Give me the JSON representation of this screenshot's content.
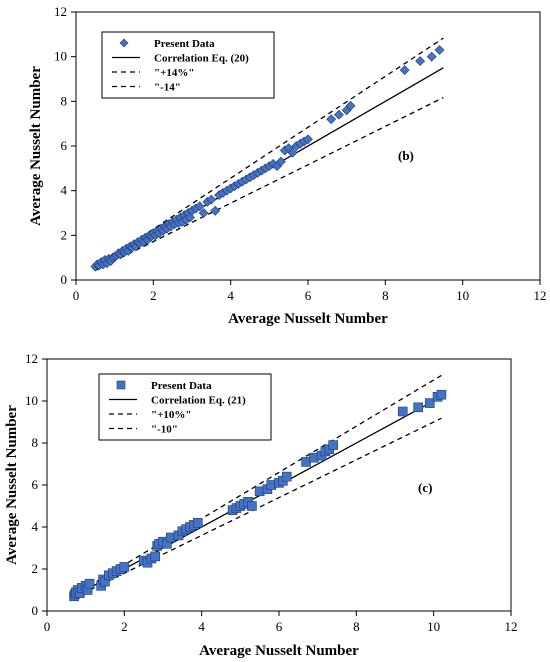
{
  "chart_data": [
    {
      "type": "scatter",
      "panel_label": "(b)",
      "xlabel": "Average Nusselt Number",
      "ylabel": "Average Nusselt Number",
      "xlim": [
        0,
        12
      ],
      "ylim": [
        0,
        12
      ],
      "xticks": [
        0,
        2,
        4,
        6,
        8,
        10,
        12
      ],
      "yticks": [
        0,
        2,
        4,
        6,
        8,
        10,
        12
      ],
      "grid": false,
      "legend_position": "top-left",
      "marker": "diamond",
      "marker_color": "#4472C4",
      "series": [
        {
          "name": "Present Data",
          "kind": "points",
          "x": [
            0.5,
            0.55,
            0.6,
            0.65,
            0.7,
            0.75,
            0.8,
            0.85,
            0.9,
            0.95,
            1.0,
            1.05,
            1.1,
            1.15,
            1.2,
            1.25,
            1.3,
            1.35,
            1.4,
            1.45,
            1.5,
            1.55,
            1.6,
            1.65,
            1.7,
            1.75,
            1.8,
            1.85,
            1.9,
            1.95,
            2.0,
            2.05,
            2.1,
            2.15,
            2.2,
            2.25,
            2.3,
            2.35,
            2.4,
            2.45,
            2.5,
            2.55,
            2.6,
            2.65,
            2.7,
            2.75,
            2.8,
            2.85,
            2.9,
            2.95,
            3.0,
            3.1,
            3.2,
            3.3,
            3.4,
            3.5,
            3.6,
            3.7,
            3.8,
            3.9,
            4.0,
            4.1,
            4.2,
            4.3,
            4.4,
            4.5,
            4.6,
            4.7,
            4.8,
            4.9,
            5.0,
            5.1,
            5.2,
            5.3,
            5.4,
            5.5,
            5.6,
            5.7,
            5.8,
            5.9,
            6.0,
            6.6,
            6.8,
            7.0,
            7.1,
            8.5,
            8.9,
            9.2,
            9.4
          ],
          "y": [
            0.6,
            0.7,
            0.65,
            0.8,
            0.7,
            0.9,
            0.75,
            0.95,
            0.85,
            1.0,
            1.05,
            1.1,
            1.2,
            1.15,
            1.3,
            1.25,
            1.4,
            1.3,
            1.5,
            1.45,
            1.6,
            1.5,
            1.7,
            1.65,
            1.8,
            1.7,
            1.9,
            1.8,
            2.0,
            1.95,
            2.1,
            2.0,
            2.2,
            2.1,
            2.3,
            2.2,
            2.4,
            2.3,
            2.5,
            2.4,
            2.6,
            2.5,
            2.7,
            2.55,
            2.8,
            2.6,
            2.9,
            2.7,
            3.0,
            2.8,
            3.1,
            3.2,
            3.3,
            3.0,
            3.5,
            3.6,
            3.1,
            3.8,
            3.9,
            4.0,
            4.1,
            4.2,
            4.3,
            4.4,
            4.5,
            4.6,
            4.7,
            4.8,
            4.9,
            5.0,
            5.1,
            5.2,
            5.1,
            5.3,
            5.8,
            5.9,
            5.7,
            6.0,
            6.1,
            6.2,
            6.3,
            7.2,
            7.4,
            7.6,
            7.8,
            9.4,
            9.8,
            10.0,
            10.3
          ]
        },
        {
          "name": "Correlation Eq. (20)",
          "kind": "line",
          "style": "solid",
          "x": [
            0.5,
            9.5
          ],
          "y": [
            0.5,
            9.5
          ]
        },
        {
          "name": "\"+14%\"",
          "kind": "line",
          "style": "dashed",
          "x": [
            0.5,
            9.5
          ],
          "y": [
            0.57,
            10.83
          ]
        },
        {
          "name": "\"-14\"",
          "kind": "line",
          "style": "dashed",
          "x": [
            0.5,
            9.5
          ],
          "y": [
            0.43,
            8.17
          ]
        }
      ]
    },
    {
      "type": "scatter",
      "panel_label": "(c)",
      "xlabel": "Average Nusselt Number",
      "ylabel": "Average Nusselt Number",
      "xlim": [
        0,
        12
      ],
      "ylim": [
        0,
        12
      ],
      "xticks": [
        0,
        2,
        4,
        6,
        8,
        10,
        12
      ],
      "yticks": [
        0,
        2,
        4,
        6,
        8,
        10,
        12
      ],
      "grid": false,
      "legend_position": "top-left",
      "marker": "square",
      "marker_color": "#4472C4",
      "series": [
        {
          "name": "Present Data",
          "kind": "points",
          "x": [
            0.7,
            0.72,
            0.75,
            0.8,
            0.85,
            0.9,
            1.0,
            1.05,
            1.1,
            1.4,
            1.45,
            1.5,
            1.6,
            1.7,
            1.8,
            1.9,
            2.0,
            2.5,
            2.6,
            2.7,
            2.8,
            2.85,
            2.9,
            3.0,
            3.1,
            3.2,
            3.4,
            3.5,
            3.6,
            3.7,
            3.8,
            3.9,
            4.8,
            4.9,
            5.0,
            5.1,
            5.2,
            5.3,
            5.5,
            5.7,
            5.8,
            6.0,
            6.1,
            6.2,
            6.7,
            6.9,
            7.1,
            7.2,
            7.3,
            7.4,
            9.2,
            9.6,
            9.9,
            10.1,
            10.2
          ],
          "y": [
            0.7,
            0.8,
            0.9,
            1.0,
            0.85,
            1.1,
            1.2,
            1.0,
            1.3,
            1.2,
            1.5,
            1.4,
            1.7,
            1.8,
            1.9,
            2.0,
            2.1,
            2.4,
            2.3,
            2.5,
            2.6,
            3.1,
            3.2,
            3.3,
            3.2,
            3.5,
            3.6,
            3.8,
            3.9,
            4.0,
            4.1,
            4.2,
            4.8,
            4.9,
            5.0,
            5.1,
            5.2,
            5.0,
            5.7,
            5.8,
            6.0,
            6.1,
            6.2,
            6.4,
            7.1,
            7.3,
            7.4,
            7.6,
            7.7,
            7.9,
            9.5,
            9.7,
            9.9,
            10.2,
            10.3
          ]
        },
        {
          "name": "Correlation Eq. (21)",
          "kind": "line",
          "style": "solid",
          "x": [
            0.7,
            10.2
          ],
          "y": [
            0.7,
            10.2
          ]
        },
        {
          "name": "\"+10%\"",
          "kind": "line",
          "style": "dashed",
          "x": [
            0.7,
            10.2
          ],
          "y": [
            0.77,
            11.22
          ]
        },
        {
          "name": "\"-10\"",
          "kind": "line",
          "style": "dashed",
          "x": [
            0.7,
            10.2
          ],
          "y": [
            0.63,
            9.18
          ]
        }
      ]
    }
  ]
}
